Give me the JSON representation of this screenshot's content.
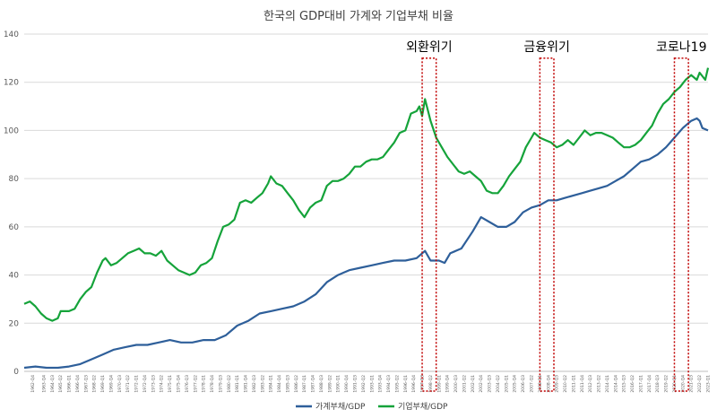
{
  "chart_data": {
    "type": "line",
    "title": "한국의 GDP대비 가계와 기업부채 비율",
    "xlabel": "",
    "ylabel": "",
    "ylim": [
      0,
      140
    ],
    "yticks": [
      0,
      20,
      40,
      60,
      80,
      100,
      120,
      140
    ],
    "grid": "horizontal",
    "legend_position": "bottom",
    "x_start": "1962-Q1",
    "x_end": "2023-Q1",
    "x_labels": [
      "1962-Q4",
      "1963-Q4",
      "1964-Q3",
      "1965-Q2",
      "1966-Q1",
      "1966-Q4",
      "1967-Q3",
      "1968-Q2",
      "1969-Q1",
      "1969-Q4",
      "1970-Q3",
      "1971-Q2",
      "1972-Q1",
      "1972-Q4",
      "1973-Q3",
      "1974-Q2",
      "1975-Q1",
      "1975-Q4",
      "1976-Q3",
      "1977-Q2",
      "1978-Q1",
      "1978-Q4",
      "1979-Q3",
      "1980-Q2",
      "1981-Q1",
      "1981-Q4",
      "1982-Q3",
      "1983-Q2",
      "1984-Q1",
      "1984-Q4",
      "1985-Q3",
      "1986-Q2",
      "1987-Q1",
      "1987-Q4",
      "1988-Q3",
      "1989-Q2",
      "1990-Q1",
      "1990-Q4",
      "1991-Q3",
      "1992-Q2",
      "1993-Q1",
      "1993-Q4",
      "1994-Q3",
      "1995-Q2",
      "1996-Q1",
      "1996-Q4",
      "1997-Q3",
      "1998-Q2",
      "1999-Q1",
      "1999-Q4",
      "2000-Q3",
      "2001-Q2",
      "2002-Q1",
      "2002-Q4",
      "2003-Q3",
      "2004-Q2",
      "2005-Q1",
      "2005-Q4",
      "2006-Q3",
      "2007-Q2",
      "2008-Q1",
      "2008-Q4",
      "2009-Q3",
      "2010-Q2",
      "2011-Q1",
      "2011-Q4",
      "2012-Q3",
      "2013-Q2",
      "2014-Q1",
      "2014-Q4",
      "2015-Q3",
      "2016-Q2",
      "2017-Q1",
      "2017-Q4",
      "2018-Q3",
      "2019-Q2",
      "2020-Q1",
      "2020-Q4",
      "2021-Q3",
      "2022-Q2",
      "2023-Q1"
    ],
    "series": [
      {
        "name": "가계부채/GDP",
        "color": "#2E5F9A",
        "points": [
          [
            "1962-Q1",
            1.5
          ],
          [
            "1963-Q1",
            2
          ],
          [
            "1964-Q1",
            1.5
          ],
          [
            "1965-Q1",
            1.5
          ],
          [
            "1966-Q1",
            2
          ],
          [
            "1967-Q1",
            3
          ],
          [
            "1968-Q1",
            5
          ],
          [
            "1969-Q1",
            7
          ],
          [
            "1970-Q1",
            9
          ],
          [
            "1971-Q1",
            10
          ],
          [
            "1972-Q1",
            11
          ],
          [
            "1973-Q1",
            11
          ],
          [
            "1974-Q1",
            12
          ],
          [
            "1975-Q1",
            13
          ],
          [
            "1976-Q1",
            12
          ],
          [
            "1977-Q1",
            12
          ],
          [
            "1978-Q1",
            13
          ],
          [
            "1979-Q1",
            13
          ],
          [
            "1980-Q1",
            15
          ],
          [
            "1981-Q1",
            19
          ],
          [
            "1982-Q1",
            21
          ],
          [
            "1983-Q1",
            24
          ],
          [
            "1984-Q1",
            25
          ],
          [
            "1985-Q1",
            26
          ],
          [
            "1986-Q1",
            27
          ],
          [
            "1987-Q1",
            29
          ],
          [
            "1988-Q1",
            32
          ],
          [
            "1989-Q1",
            37
          ],
          [
            "1990-Q1",
            40
          ],
          [
            "1991-Q1",
            42
          ],
          [
            "1992-Q1",
            43
          ],
          [
            "1993-Q1",
            44
          ],
          [
            "1994-Q1",
            45
          ],
          [
            "1995-Q1",
            46
          ],
          [
            "1996-Q1",
            46
          ],
          [
            "1997-Q1",
            47
          ],
          [
            "1997-Q4",
            50
          ],
          [
            "1998-Q2",
            46
          ],
          [
            "1999-Q1",
            46
          ],
          [
            "1999-Q3",
            45
          ],
          [
            "2000-Q1",
            49
          ],
          [
            "2001-Q1",
            51
          ],
          [
            "2002-Q1",
            58
          ],
          [
            "2002-Q4",
            64
          ],
          [
            "2003-Q3",
            62
          ],
          [
            "2004-Q2",
            60
          ],
          [
            "2005-Q1",
            60
          ],
          [
            "2005-Q4",
            62
          ],
          [
            "2006-Q3",
            66
          ],
          [
            "2007-Q2",
            68
          ],
          [
            "2008-Q1",
            69
          ],
          [
            "2008-Q4",
            71
          ],
          [
            "2009-Q3",
            71
          ],
          [
            "2010-Q2",
            72
          ],
          [
            "2011-Q1",
            73
          ],
          [
            "2011-Q4",
            74
          ],
          [
            "2012-Q3",
            75
          ],
          [
            "2013-Q2",
            76
          ],
          [
            "2014-Q1",
            77
          ],
          [
            "2014-Q4",
            79
          ],
          [
            "2015-Q3",
            81
          ],
          [
            "2016-Q2",
            84
          ],
          [
            "2017-Q1",
            87
          ],
          [
            "2017-Q4",
            88
          ],
          [
            "2018-Q3",
            90
          ],
          [
            "2019-Q2",
            93
          ],
          [
            "2020-Q1",
            97
          ],
          [
            "2020-Q4",
            101
          ],
          [
            "2021-Q3",
            104
          ],
          [
            "2022-Q1",
            105
          ],
          [
            "2022-Q2",
            104
          ],
          [
            "2022-Q3",
            101
          ],
          [
            "2023-Q1",
            100
          ]
        ]
      },
      {
        "name": "기업부채/GDP",
        "color": "#15A33A",
        "points": [
          [
            "1962-Q1",
            28
          ],
          [
            "1962-Q3",
            29
          ],
          [
            "1963-Q1",
            27
          ],
          [
            "1963-Q3",
            24
          ],
          [
            "1964-Q1",
            22
          ],
          [
            "1964-Q3",
            21
          ],
          [
            "1965-Q1",
            22
          ],
          [
            "1965-Q2",
            25
          ],
          [
            "1966-Q1",
            25
          ],
          [
            "1966-Q3",
            26
          ],
          [
            "1967-Q1",
            30
          ],
          [
            "1967-Q3",
            33
          ],
          [
            "1968-Q1",
            35
          ],
          [
            "1968-Q3",
            41
          ],
          [
            "1969-Q1",
            46
          ],
          [
            "1969-Q2",
            47
          ],
          [
            "1969-Q4",
            44
          ],
          [
            "1970-Q2",
            45
          ],
          [
            "1970-Q4",
            47
          ],
          [
            "1971-Q2",
            49
          ],
          [
            "1971-Q4",
            50
          ],
          [
            "1972-Q2",
            51
          ],
          [
            "1972-Q4",
            49
          ],
          [
            "1973-Q2",
            49
          ],
          [
            "1973-Q4",
            48
          ],
          [
            "1974-Q2",
            50
          ],
          [
            "1974-Q4",
            46
          ],
          [
            "1975-Q2",
            44
          ],
          [
            "1975-Q4",
            42
          ],
          [
            "1976-Q2",
            41
          ],
          [
            "1976-Q4",
            40
          ],
          [
            "1977-Q2",
            41
          ],
          [
            "1977-Q4",
            44
          ],
          [
            "1978-Q2",
            45
          ],
          [
            "1978-Q4",
            47
          ],
          [
            "1979-Q2",
            54
          ],
          [
            "1979-Q4",
            60
          ],
          [
            "1980-Q2",
            61
          ],
          [
            "1980-Q4",
            63
          ],
          [
            "1981-Q2",
            70
          ],
          [
            "1981-Q4",
            71
          ],
          [
            "1982-Q2",
            70
          ],
          [
            "1982-Q4",
            72
          ],
          [
            "1983-Q2",
            74
          ],
          [
            "1983-Q4",
            78
          ],
          [
            "1984-Q1",
            81
          ],
          [
            "1984-Q3",
            78
          ],
          [
            "1985-Q1",
            77
          ],
          [
            "1985-Q3",
            74
          ],
          [
            "1986-Q1",
            71
          ],
          [
            "1986-Q3",
            67
          ],
          [
            "1987-Q1",
            64
          ],
          [
            "1987-Q3",
            68
          ],
          [
            "1988-Q1",
            70
          ],
          [
            "1988-Q3",
            71
          ],
          [
            "1989-Q1",
            77
          ],
          [
            "1989-Q3",
            79
          ],
          [
            "1990-Q1",
            79
          ],
          [
            "1990-Q3",
            80
          ],
          [
            "1991-Q1",
            82
          ],
          [
            "1991-Q3",
            85
          ],
          [
            "1992-Q1",
            85
          ],
          [
            "1992-Q3",
            87
          ],
          [
            "1993-Q1",
            88
          ],
          [
            "1993-Q3",
            88
          ],
          [
            "1994-Q1",
            89
          ],
          [
            "1994-Q3",
            92
          ],
          [
            "1995-Q1",
            95
          ],
          [
            "1995-Q3",
            99
          ],
          [
            "1996-Q1",
            100
          ],
          [
            "1996-Q3",
            107
          ],
          [
            "1997-Q1",
            108
          ],
          [
            "1997-Q2",
            110
          ],
          [
            "1997-Q3",
            106
          ],
          [
            "1997-Q4",
            113
          ],
          [
            "1998-Q2",
            104
          ],
          [
            "1998-Q4",
            97
          ],
          [
            "1999-Q2",
            93
          ],
          [
            "1999-Q4",
            89
          ],
          [
            "2000-Q2",
            86
          ],
          [
            "2000-Q4",
            83
          ],
          [
            "2001-Q2",
            82
          ],
          [
            "2001-Q4",
            83
          ],
          [
            "2002-Q2",
            81
          ],
          [
            "2002-Q4",
            79
          ],
          [
            "2003-Q2",
            75
          ],
          [
            "2003-Q4",
            74
          ],
          [
            "2004-Q2",
            74
          ],
          [
            "2004-Q4",
            77
          ],
          [
            "2005-Q2",
            81
          ],
          [
            "2005-Q4",
            84
          ],
          [
            "2006-Q2",
            87
          ],
          [
            "2006-Q4",
            93
          ],
          [
            "2007-Q2",
            97
          ],
          [
            "2007-Q3",
            99
          ],
          [
            "2008-Q1",
            97
          ],
          [
            "2008-Q3",
            96
          ],
          [
            "2009-Q1",
            95
          ],
          [
            "2009-Q3",
            93
          ],
          [
            "2010-Q1",
            94
          ],
          [
            "2010-Q3",
            96
          ],
          [
            "2011-Q1",
            94
          ],
          [
            "2011-Q3",
            97
          ],
          [
            "2012-Q1",
            100
          ],
          [
            "2012-Q3",
            98
          ],
          [
            "2013-Q1",
            99
          ],
          [
            "2013-Q3",
            99
          ],
          [
            "2014-Q1",
            98
          ],
          [
            "2014-Q3",
            97
          ],
          [
            "2015-Q1",
            95
          ],
          [
            "2015-Q3",
            93
          ],
          [
            "2016-Q1",
            93
          ],
          [
            "2016-Q3",
            94
          ],
          [
            "2017-Q1",
            96
          ],
          [
            "2017-Q3",
            99
          ],
          [
            "2018-Q1",
            102
          ],
          [
            "2018-Q3",
            107
          ],
          [
            "2019-Q1",
            111
          ],
          [
            "2019-Q3",
            113
          ],
          [
            "2020-Q1",
            116
          ],
          [
            "2020-Q3",
            118
          ],
          [
            "2021-Q1",
            121
          ],
          [
            "2021-Q3",
            123
          ],
          [
            "2022-Q1",
            121
          ],
          [
            "2022-Q2",
            124
          ],
          [
            "2022-Q4",
            121
          ],
          [
            "2023-Q1",
            126
          ]
        ]
      }
    ],
    "annotations": [
      {
        "label": "외환위기",
        "from": "1997-Q3",
        "to": "1998-Q4",
        "ymax": 130
      },
      {
        "label": "금융위기",
        "from": "2008-Q1",
        "to": "2009-Q2",
        "ymax": 130
      },
      {
        "label": "코로나19",
        "from": "2020-Q1",
        "to": "2021-Q2",
        "ymax": 130
      }
    ]
  }
}
